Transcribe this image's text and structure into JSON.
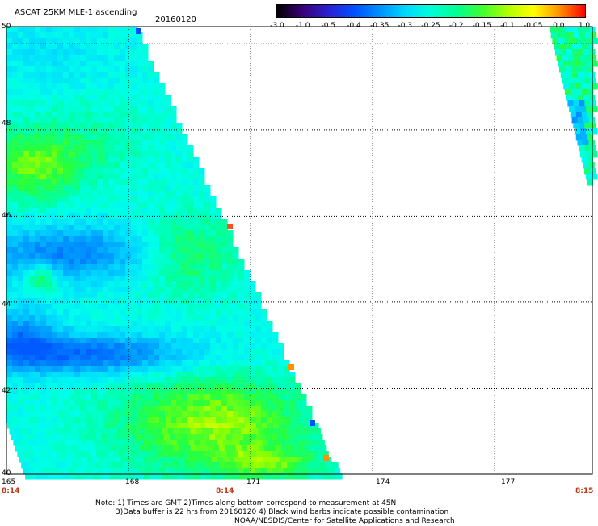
{
  "header": {
    "title": "ASCAT 25KM MLE-1 ascending",
    "date": "20160120"
  },
  "colorbar": {
    "labels": [
      "-3.0",
      "-1.0",
      "-0.5",
      "-0.4",
      "-0.35",
      "-0.3",
      "-0.25",
      "-0.2",
      "-0.15",
      "-0.1",
      "-0.05",
      "0.0",
      "1.0"
    ],
    "colors": [
      "#000000",
      "#3a007a",
      "#2a20d0",
      "#0050ff",
      "#0090ff",
      "#00d8ff",
      "#00ffd8",
      "#00ff90",
      "#40ff30",
      "#b0ff00",
      "#ffff00",
      "#ff9000",
      "#ff0000"
    ]
  },
  "axes": {
    "lon_ticks": [
      "165",
      "168",
      "171",
      "174",
      "177"
    ],
    "lat_ticks": [
      "50",
      "48",
      "46",
      "44",
      "42",
      "40"
    ],
    "lon_range": [
      165,
      179.4
    ],
    "lat_range": [
      40,
      50.4
    ]
  },
  "times": [
    "8:14",
    "8:14",
    "8:15"
  ],
  "notes": {
    "line1": "Note: 1) Times are GMT 2)Times along bottom correspond to measurement at 45N",
    "line2": "3)Data buffer is 22 hrs from 20160120 4) Black wind barbs indicate possible contamination",
    "line3": "NOAA/NESDIS/Center for Satellite Applications and Research"
  }
}
